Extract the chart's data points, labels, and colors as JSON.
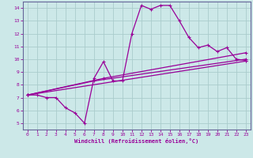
{
  "xlabel": "Windchill (Refroidissement éolien,°C)",
  "bg_color": "#cce8e8",
  "grid_color": "#aacccc",
  "line_color": "#990099",
  "spine_color": "#666699",
  "xlim": [
    -0.5,
    23.5
  ],
  "ylim": [
    4.5,
    14.5
  ],
  "xticks": [
    0,
    1,
    2,
    3,
    4,
    5,
    6,
    7,
    8,
    9,
    10,
    11,
    12,
    13,
    14,
    15,
    16,
    17,
    18,
    19,
    20,
    21,
    22,
    23
  ],
  "yticks": [
    5,
    6,
    7,
    8,
    9,
    10,
    11,
    12,
    13,
    14
  ],
  "series1_x": [
    0,
    1,
    2,
    3,
    4,
    5,
    6,
    7,
    8,
    9,
    10,
    11,
    12,
    13,
    14,
    15,
    16,
    17,
    18,
    19,
    20,
    21,
    22,
    23
  ],
  "series1_y": [
    7.2,
    7.2,
    7.0,
    7.0,
    6.2,
    5.8,
    5.0,
    8.5,
    9.8,
    8.3,
    8.3,
    12.0,
    14.2,
    13.9,
    14.2,
    14.2,
    13.0,
    11.7,
    10.9,
    11.1,
    10.6,
    10.9,
    10.0,
    9.9
  ],
  "series2_x": [
    0,
    23
  ],
  "series2_y": [
    7.2,
    9.85
  ],
  "series3_x": [
    0,
    7,
    23
  ],
  "series3_y": [
    7.2,
    8.3,
    10.0
  ],
  "series4_x": [
    0,
    8,
    23
  ],
  "series4_y": [
    7.2,
    8.5,
    10.5
  ]
}
